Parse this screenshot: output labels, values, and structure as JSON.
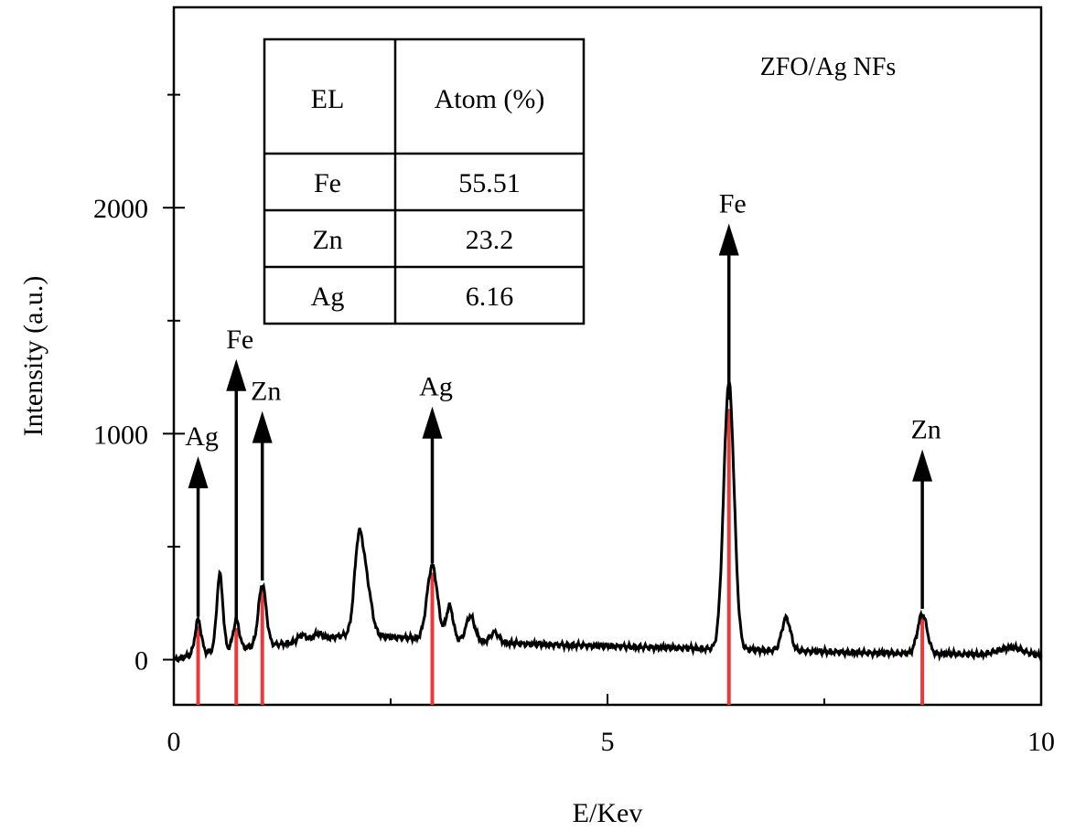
{
  "chart_data": {
    "type": "line",
    "title": "ZFO/Ag NFs",
    "xlabel": "E/Kev",
    "ylabel": "Intensity (a.u.)",
    "xlim": [
      0,
      10
    ],
    "ylim": [
      -200,
      2900
    ],
    "x_ticks": [
      0,
      5,
      10
    ],
    "y_ticks": [
      0,
      1000,
      2000
    ],
    "grid": false,
    "legend": "none",
    "line_color": "#000000",
    "marker_color": "#e83a3a",
    "baseline": [
      [
        0.0,
        0
      ],
      [
        0.2,
        20
      ],
      [
        0.5,
        40
      ],
      [
        1.0,
        60
      ],
      [
        1.5,
        80
      ],
      [
        2.0,
        110
      ],
      [
        2.5,
        100
      ],
      [
        3.0,
        90
      ],
      [
        3.5,
        80
      ],
      [
        4.0,
        70
      ],
      [
        5.0,
        60
      ],
      [
        6.0,
        50
      ],
      [
        7.0,
        40
      ],
      [
        8.0,
        30
      ],
      [
        9.0,
        25
      ],
      [
        10.0,
        15
      ]
    ],
    "peaks": [
      {
        "x": 0.28,
        "height": 150,
        "width": 0.035
      },
      {
        "x": 0.53,
        "height": 335,
        "width": 0.035
      },
      {
        "x": 0.72,
        "height": 125,
        "width": 0.035
      },
      {
        "x": 1.02,
        "height": 270,
        "width": 0.045
      },
      {
        "x": 1.48,
        "height": 30,
        "width": 0.05
      },
      {
        "x": 1.66,
        "height": 25,
        "width": 0.05
      },
      {
        "x": 2.13,
        "height": 380,
        "width": 0.05
      },
      {
        "x": 2.22,
        "height": 220,
        "width": 0.06
      },
      {
        "x": 2.98,
        "height": 325,
        "width": 0.06
      },
      {
        "x": 3.18,
        "height": 150,
        "width": 0.04
      },
      {
        "x": 3.42,
        "height": 110,
        "width": 0.05
      },
      {
        "x": 3.7,
        "height": 45,
        "width": 0.05
      },
      {
        "x": 6.4,
        "height": 1180,
        "width": 0.06
      },
      {
        "x": 7.06,
        "height": 145,
        "width": 0.05
      },
      {
        "x": 8.63,
        "height": 175,
        "width": 0.055
      },
      {
        "x": 9.65,
        "height": 35,
        "width": 0.15
      }
    ],
    "element_markers": [
      {
        "label": "Ag",
        "x": 0.28,
        "marker_top": 150,
        "arrow_top": 900
      },
      {
        "label": "Fe",
        "x": 0.72,
        "marker_top": 140,
        "arrow_top": 1330
      },
      {
        "label": "Zn",
        "x": 1.02,
        "marker_top": 310,
        "arrow_top": 1100
      },
      {
        "label": "Ag",
        "x": 2.98,
        "marker_top": 385,
        "arrow_top": 1120
      },
      {
        "label": "Fe",
        "x": 6.4,
        "marker_top": 1110,
        "arrow_top": 1930
      },
      {
        "label": "Zn",
        "x": 8.63,
        "marker_top": 185,
        "arrow_top": 930
      }
    ],
    "inset_table": {
      "headers": [
        "EL",
        "Atom (%)"
      ],
      "rows": [
        [
          "Fe",
          "55.51"
        ],
        [
          "Zn",
          "23.2"
        ],
        [
          "Ag",
          "6.16"
        ]
      ]
    }
  }
}
